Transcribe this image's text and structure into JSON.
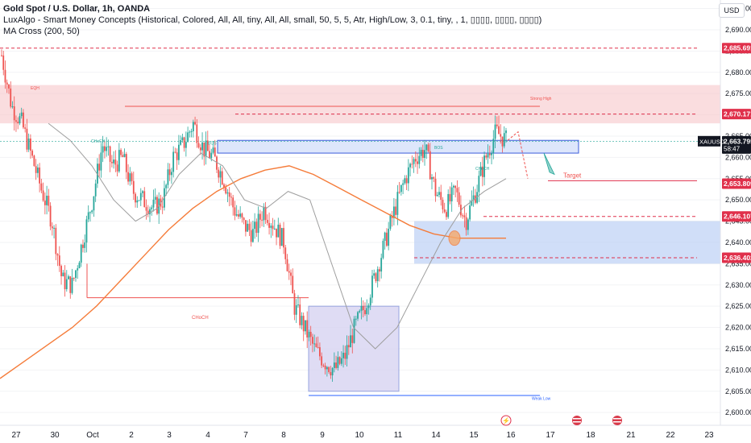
{
  "legend": {
    "title": "Gold Spot / U.S. Dollar, 1h, OANDA",
    "line2": "LuxAlgo - Smart Money Concepts (Historical, Colored, All, All, tiny, All, All, small, 50, 5, 5, Atr, High/Low, 3, 0.1, tiny, , 1, ▯▯▯▯, ▯▯▯▯, ▯▯▯▯)",
    "line3": "MA Cross (200, 50)"
  },
  "currency": "USD",
  "colors": {
    "up": "#26a69a",
    "down": "#ef5350",
    "ma200": "#f57c3a",
    "ma50": "#9e9e9e",
    "bear_zone": "#f7c6c9",
    "bull_zone": "#bcd0f5",
    "box_purple": "#d8d4f2",
    "tag_red": "#e0304b",
    "tag_dark": "#131722"
  },
  "chart_data": {
    "type": "candlestick",
    "symbol": "XAUUSD",
    "ylim": [
      2597,
      2697
    ],
    "y_ticks": [
      2600,
      2605,
      2610,
      2615,
      2620,
      2625,
      2630,
      2635,
      2640,
      2645,
      2650,
      2655,
      2660,
      2665,
      2670,
      2675,
      2680,
      2685,
      2690,
      2695
    ],
    "x_ticks": [
      "27",
      "30",
      "Oct",
      "2",
      "3",
      "4",
      "7",
      "8",
      "9",
      "10",
      "11",
      "14",
      "15",
      "16",
      "17",
      "18",
      "21",
      "22",
      "23"
    ],
    "price_tags": [
      {
        "value": "2,685.691",
        "style": "red"
      },
      {
        "value": "2,670.171",
        "style": "red"
      },
      {
        "value": "2,663.795",
        "style": "dark",
        "sub": "58:47",
        "label": "XAUUSD"
      },
      {
        "value": "2,653.809",
        "style": "red"
      },
      {
        "value": "2,646.107",
        "style": "red"
      },
      {
        "value": "2,636.402",
        "style": "red"
      }
    ],
    "series": [
      {
        "name": "close_path",
        "values": [
          2684,
          2672,
          2668,
          2660,
          2652,
          2645,
          2631,
          2630,
          2640,
          2650,
          2663,
          2658,
          2660,
          2652,
          2650,
          2648,
          2650,
          2660,
          2663,
          2668,
          2662,
          2660,
          2655,
          2648,
          2644,
          2642,
          2648,
          2644,
          2640,
          2625,
          2620,
          2615,
          2612,
          2610,
          2613,
          2620,
          2625,
          2632,
          2640,
          2648,
          2655,
          2660,
          2662,
          2652,
          2648,
          2652,
          2645,
          2652,
          2660,
          2666,
          2664
        ]
      }
    ],
    "ma200": [
      2608,
      2612,
      2616,
      2620,
      2625,
      2631,
      2637,
      2643,
      2648,
      2652,
      2655,
      2657,
      2658,
      2656,
      2653,
      2650,
      2647,
      2644,
      2642,
      2641,
      2641,
      2641
    ],
    "ma50": [
      2668,
      2664,
      2658,
      2650,
      2645,
      2648,
      2656,
      2661,
      2658,
      2650,
      2648,
      2652,
      2650,
      2635,
      2620,
      2615,
      2620,
      2630,
      2640,
      2648,
      2652,
      2655
    ],
    "annotations": [
      "EQH",
      "Strong High",
      "Weak Low",
      "CHoCH",
      "BOS",
      "Target"
    ],
    "levels": {
      "eqh_zone": [
        2668,
        2677
      ],
      "blue_zone_top": [
        2661,
        2664
      ],
      "bull_zone": [
        2635,
        2645
      ],
      "purple_box": [
        2605,
        2625
      ],
      "choch_line": 2627,
      "target": 2654.5
    }
  }
}
